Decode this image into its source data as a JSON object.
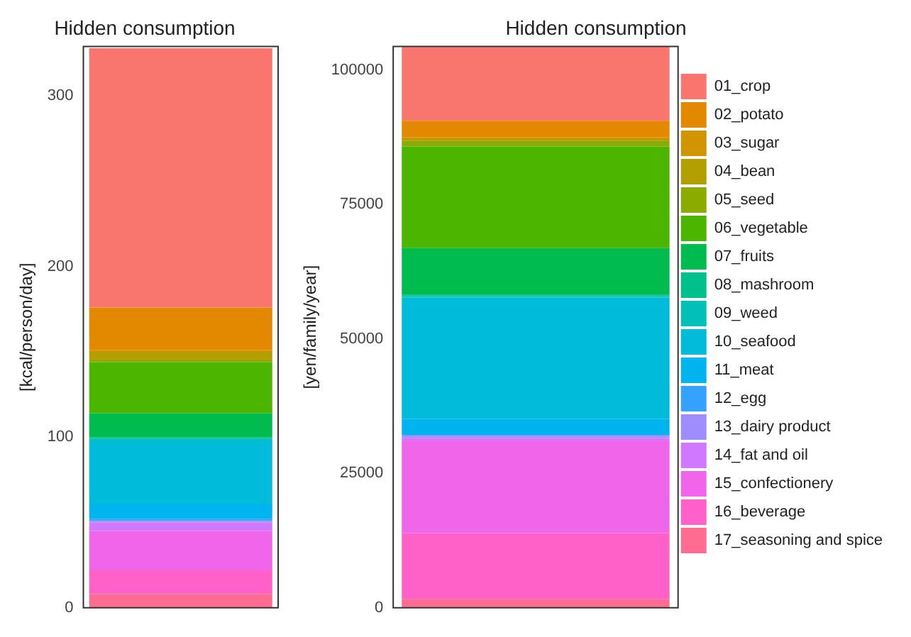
{
  "chart_data": [
    {
      "type": "bar",
      "title": "Hidden consumption",
      "ylabel": "[kcal/person/day]",
      "categories": [
        null
      ],
      "stacked": true,
      "grid": false,
      "ylim": [
        0,
        329
      ],
      "yticks": [
        0,
        100,
        200,
        300
      ],
      "series": [
        {
          "color": "#ff6c91",
          "values": [
            8
          ]
        },
        {
          "color": "#ff61c9",
          "values": [
            14
          ]
        },
        {
          "color": "#f066ea",
          "values": [
            23
          ]
        },
        {
          "color": "#d078ff",
          "values": [
            5
          ]
        },
        {
          "color": "#9f8cff",
          "values": [
            1
          ]
        },
        {
          "color": "#35a2ff",
          "values": [
            1
          ]
        },
        {
          "color": "#00b4f0",
          "values": [
            9
          ]
        },
        {
          "color": "#00bbda",
          "values": [
            37
          ]
        },
        {
          "color": "#00c0b8",
          "values": [
            1
          ]
        },
        {
          "color": "#00c08b",
          "values": [
            1
          ]
        },
        {
          "color": "#00bc4f",
          "values": [
            14
          ]
        },
        {
          "color": "#4bb500",
          "values": [
            30
          ]
        },
        {
          "color": "#8bab00",
          "values": [
            1
          ]
        },
        {
          "color": "#b3a000",
          "values": [
            5
          ]
        },
        {
          "color": "#d09500",
          "values": [
            1
          ]
        },
        {
          "color": "#e38900",
          "values": [
            25
          ]
        },
        {
          "color": "#f8766d",
          "values": [
            152
          ]
        }
      ]
    },
    {
      "type": "bar",
      "title": "Hidden consumption",
      "ylabel": "[yen/family/year]",
      "categories": [
        null
      ],
      "stacked": true,
      "grid": false,
      "legend": "right",
      "ylim": [
        0,
        104400
      ],
      "yticks": [
        0,
        25000,
        50000,
        75000,
        100000
      ],
      "series": [
        {
          "name": "17_seasoning and spice",
          "color": "#ff6c91",
          "values": [
            1600
          ]
        },
        {
          "name": "16_beverage",
          "color": "#ff61c9",
          "values": [
            12300
          ]
        },
        {
          "name": "15_confectionery",
          "color": "#f066ea",
          "values": [
            17200
          ]
        },
        {
          "name": "14_fat and oil",
          "color": "#d078ff",
          "values": [
            500
          ]
        },
        {
          "name": "13_dairy product",
          "color": "#9f8cff",
          "values": [
            400
          ]
        },
        {
          "name": "12_egg",
          "color": "#35a2ff",
          "values": [
            300
          ]
        },
        {
          "name": "11_meat",
          "color": "#00b4f0",
          "values": [
            2800
          ]
        },
        {
          "name": "10_seafood",
          "color": "#00bbda",
          "values": [
            22600
          ]
        },
        {
          "name": "09_weed",
          "color": "#00c0b8",
          "values": [
            300
          ]
        },
        {
          "name": "08_mashroom",
          "color": "#00c08b",
          "values": [
            200
          ]
        },
        {
          "name": "07_fruits",
          "color": "#00bc4f",
          "values": [
            8700
          ]
        },
        {
          "name": "06_vegetable",
          "color": "#4bb500",
          "values": [
            18900
          ]
        },
        {
          "name": "05_seed",
          "color": "#8bab00",
          "values": [
            1100
          ]
        },
        {
          "name": "04_bean",
          "color": "#b3a000",
          "values": [
            300
          ]
        },
        {
          "name": "03_sugar",
          "color": "#d09500",
          "values": [
            300
          ]
        },
        {
          "name": "02_potato",
          "color": "#e38900",
          "values": [
            3100
          ]
        },
        {
          "name": "01_crop",
          "color": "#f8766d",
          "values": [
            13700
          ]
        }
      ]
    }
  ]
}
